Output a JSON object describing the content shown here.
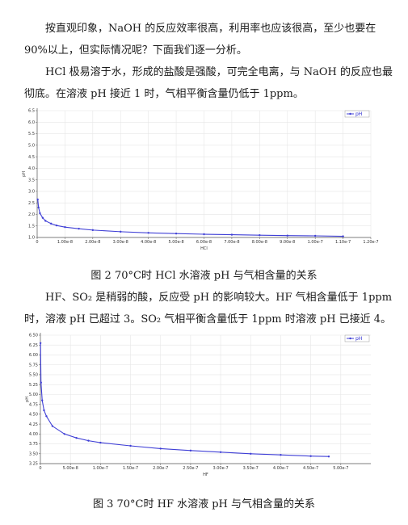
{
  "text": {
    "p1_line1": "按直观印象，NaOH 的反应效率很高，利用率也应该很高，至少也要在",
    "p1_line2": "90%以上，但实际情况呢？下面我们逐一分析。",
    "p2_line1": "HCl 极易溶于水，形成的盐酸是强酸，可完全电离，与 NaOH 的反应也最",
    "p2_line2": "彻底。在溶液 pH 接近 1 时，气相平衡含量仍低于 1ppm。",
    "caption2": "图 2 70°C时 HCl 水溶液 pH 与气相含量的关系",
    "p3_line1": "HF、SO₂ 是稍弱的酸，反应受 pH 的影响较大。HF 气相含量低于 1ppm",
    "p3_line2": "时，溶液 pH 已超过 3。SO₂ 气相平衡含量低于 1ppm 时溶液 pH 已接近 4。",
    "caption3": "图 3 70°C时 HF 水溶液 pH 与气相含量的关系"
  },
  "chart_data": [
    {
      "type": "line",
      "xlabel": "HCl",
      "ylabel": "pH",
      "legend": "top-right",
      "grid": true,
      "xlim": [
        0,
        1.2e-07
      ],
      "ylim": [
        1.0,
        6.5
      ],
      "x_ticks": [
        "0",
        "1.00e-8",
        "2.00e-8",
        "3.00e-8",
        "4.00e-8",
        "5.00e-8",
        "6.00e-8",
        "7.00e-8",
        "8.00e-8",
        "9.00e-8",
        "1.00e-7",
        "1.10e-7",
        "1.20e-7"
      ],
      "y_ticks": [
        "1.0",
        "1.5",
        "2.0",
        "2.5",
        "3.0",
        "3.5",
        "4.0",
        "4.5",
        "5.0",
        "5.5",
        "6.0",
        "6.5"
      ],
      "series": [
        {
          "name": "pH",
          "color": "#3f3fd6",
          "x": [
            2e-10,
            5e-10,
            1e-09,
            2e-09,
            3e-09,
            5e-09,
            7e-09,
            1e-08,
            1.5e-08,
            2e-08,
            3e-08,
            4e-08,
            5e-08,
            6e-08,
            7e-08,
            8e-08,
            9e-08,
            1e-07,
            1.1e-07
          ],
          "y": [
            2.65,
            2.3,
            2.05,
            1.85,
            1.72,
            1.6,
            1.52,
            1.45,
            1.38,
            1.32,
            1.25,
            1.2,
            1.17,
            1.14,
            1.12,
            1.1,
            1.08,
            1.07,
            1.05
          ]
        }
      ]
    },
    {
      "type": "line",
      "xlabel": "HF",
      "ylabel": "pH",
      "legend": "top-right",
      "grid": true,
      "xlim": [
        0,
        5.5e-07
      ],
      "ylim": [
        3.25,
        6.5
      ],
      "x_ticks": [
        "0",
        "5.00e-8",
        "1.00e-7",
        "1.50e-7",
        "2.00e-7",
        "2.50e-7",
        "3.00e-7",
        "3.50e-7",
        "4.00e-7",
        "4.50e-7",
        "5.00e-7"
      ],
      "y_ticks": [
        "3.25",
        "3.50",
        "3.75",
        "4.00",
        "4.25",
        "4.50",
        "4.75",
        "5.00",
        "5.25",
        "5.50",
        "5.75",
        "6.00",
        "6.25",
        "6.50"
      ],
      "series": [
        {
          "name": "pH",
          "color": "#3f3fd6",
          "x": [
            2e-10,
            1e-09,
            3e-09,
            6e-09,
            1e-08,
            2e-08,
            4e-08,
            6e-08,
            8e-08,
            1e-07,
            1.5e-07,
            2e-07,
            2.5e-07,
            3e-07,
            3.5e-07,
            4e-07,
            4.5e-07,
            4.8e-07
          ],
          "y": [
            6.3,
            5.3,
            4.85,
            4.6,
            4.45,
            4.2,
            4.0,
            3.9,
            3.83,
            3.78,
            3.7,
            3.63,
            3.58,
            3.54,
            3.5,
            3.47,
            3.44,
            3.43
          ]
        }
      ]
    }
  ]
}
